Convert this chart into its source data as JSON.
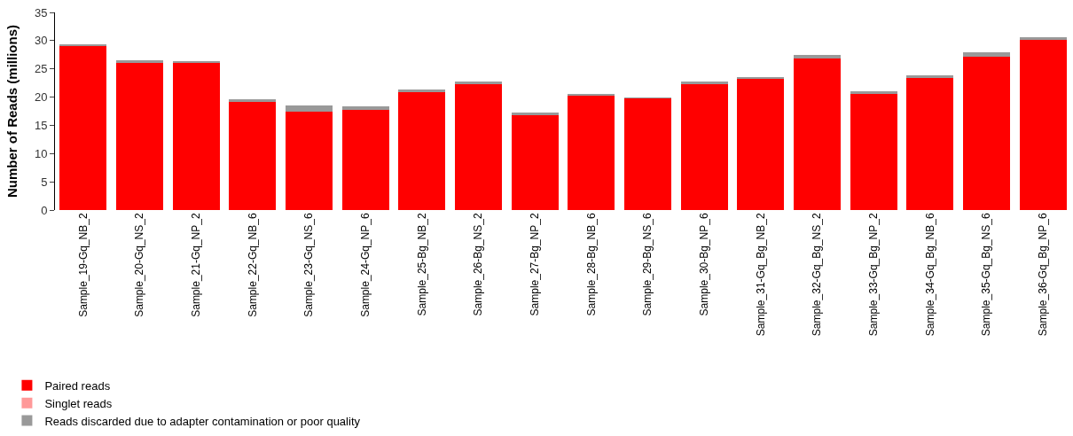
{
  "chart_data": {
    "type": "bar",
    "ylabel": "Number of Reads (millions)",
    "stacked": true,
    "legend": "bottom left",
    "categories": [
      "Sample_19-Gq_NB_2",
      "Sample_20-Gq_NS_2",
      "Sample_21-Gq_NP_2",
      "Sample_22-Gq_NB_6",
      "Sample_23-Gq_NS_6",
      "Sample_24-Gq_NP_6",
      "Sample_25-Bg_NB_2",
      "Sample_26-Bg_NS_2",
      "Sample_27-Bg_NP_2",
      "Sample_28-Bg_NB_6",
      "Sample_29-Bg_NS_6",
      "Sample_30-Bg_NP_6",
      "Sample_31-Gq_Bg_NB_2",
      "Sample_32-Gq_Bg_NS_2",
      "Sample_33-Gq_Bg_NP_2",
      "Sample_34-Gq_Bg_NB_6",
      "Sample_35-Gq_Bg_NS_6",
      "Sample_36-Gq_Bg_NP_6"
    ],
    "ylim": [
      0,
      35
    ],
    "yticks": [
      0,
      5,
      10,
      15,
      20,
      25,
      30,
      35
    ],
    "series": [
      {
        "name": "Paired reads",
        "color": "#ff0000",
        "values": [
          29.0,
          26.2,
          26.0,
          19.2,
          17.5,
          17.8,
          20.9,
          22.3,
          16.9,
          20.3,
          19.8,
          22.4,
          23.3,
          26.9,
          20.5,
          23.4,
          27.2,
          30.1
        ]
      },
      {
        "name": "Singlet reads",
        "color": "#ff9999",
        "values": [
          0,
          0,
          0,
          0,
          0,
          0,
          0,
          0,
          0,
          0,
          0,
          0,
          0,
          0,
          0,
          0,
          0,
          0
        ]
      },
      {
        "name": "Reads discarded due to adapter contamination or poor quality",
        "color": "#999999",
        "values": [
          0.4,
          0.3,
          0.4,
          0.4,
          1.0,
          0.6,
          0.5,
          0.5,
          0.3,
          0.3,
          0.1,
          0.3,
          0.2,
          0.5,
          0.6,
          0.4,
          0.8,
          0.5
        ]
      }
    ]
  }
}
